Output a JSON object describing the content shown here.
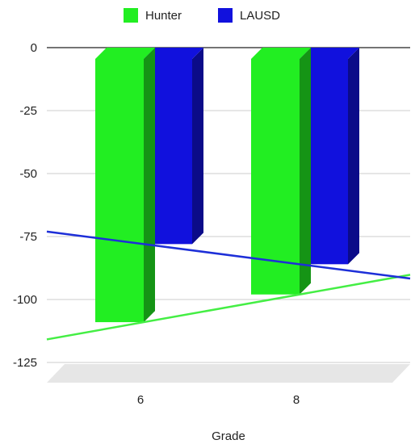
{
  "chart_data": {
    "type": "bar",
    "style": "3d-column",
    "xlabel": "Grade",
    "ylabel": "",
    "categories": [
      "6",
      "8"
    ],
    "series": [
      {
        "name": "Hunter",
        "values": [
          -109,
          -98
        ],
        "color": "#22ee22"
      },
      {
        "name": "LAUSD",
        "values": [
          -78,
          -86
        ],
        "color": "#1111dd"
      }
    ],
    "ylim": [
      -125,
      0
    ],
    "yticks": [
      0,
      -25,
      -50,
      -75,
      -100,
      -125
    ],
    "legend_position": "top-center",
    "grid": true,
    "trendlines": [
      {
        "series": "Hunter",
        "color": "#44ee44"
      },
      {
        "series": "LAUSD",
        "color": "#1d2fd8"
      }
    ]
  }
}
